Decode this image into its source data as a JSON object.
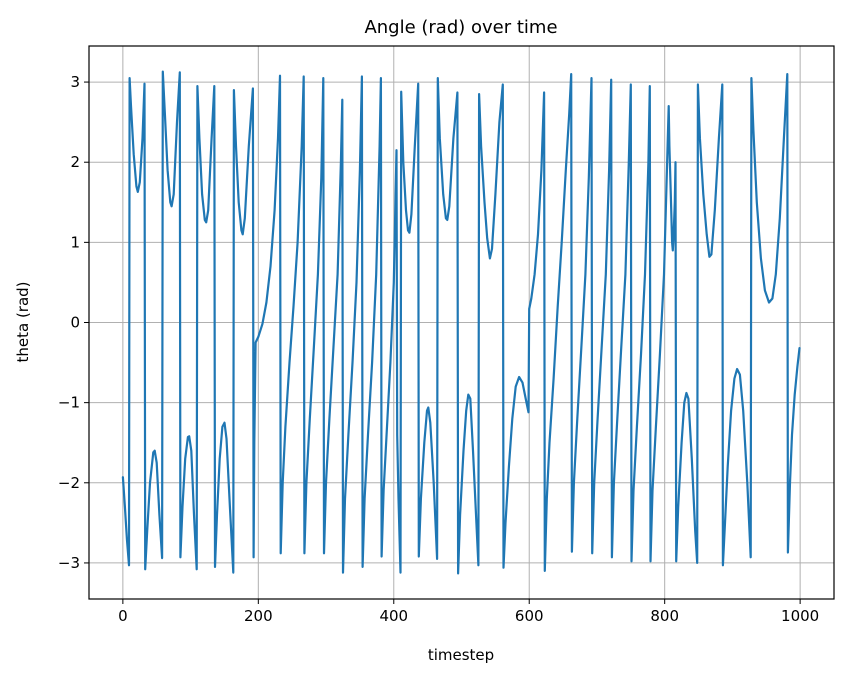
{
  "chart_data": {
    "type": "line",
    "title": "Angle (rad) over time",
    "xlabel": "timestep",
    "ylabel": "theta (rad)",
    "xlim": [
      -50,
      1050
    ],
    "ylim": [
      -3.45,
      3.45
    ],
    "xticks": [
      0,
      200,
      400,
      600,
      800,
      1000
    ],
    "xtick_labels": [
      "0",
      "200",
      "400",
      "600",
      "800",
      "1000"
    ],
    "yticks": [
      -3,
      -2,
      -1,
      0,
      1,
      2,
      3
    ],
    "ytick_labels": [
      "−3",
      "−2",
      "−1",
      "0",
      "1",
      "2",
      "3"
    ],
    "grid": true,
    "series": [
      {
        "color": "#1f77b4",
        "points": [
          [
            0,
            -1.93
          ],
          [
            3,
            -2.3
          ],
          [
            6,
            -2.7
          ],
          [
            9,
            -3.03
          ],
          [
            10,
            3.05
          ],
          [
            12,
            2.7
          ],
          [
            16,
            2.1
          ],
          [
            20,
            1.7
          ],
          [
            22,
            1.63
          ],
          [
            25,
            1.75
          ],
          [
            29,
            2.3
          ],
          [
            32,
            2.98
          ],
          [
            33,
            -3.08
          ],
          [
            36,
            -2.6
          ],
          [
            40,
            -2.0
          ],
          [
            45,
            -1.62
          ],
          [
            47,
            -1.6
          ],
          [
            50,
            -1.75
          ],
          [
            54,
            -2.4
          ],
          [
            58,
            -2.94
          ],
          [
            59,
            3.13
          ],
          [
            62,
            2.6
          ],
          [
            66,
            1.9
          ],
          [
            70,
            1.5
          ],
          [
            72,
            1.45
          ],
          [
            75,
            1.6
          ],
          [
            80,
            2.5
          ],
          [
            84,
            3.12
          ],
          [
            85,
            -2.93
          ],
          [
            88,
            -2.3
          ],
          [
            92,
            -1.7
          ],
          [
            96,
            -1.43
          ],
          [
            98,
            -1.42
          ],
          [
            101,
            -1.6
          ],
          [
            105,
            -2.4
          ],
          [
            109,
            -3.08
          ],
          [
            110,
            2.95
          ],
          [
            113,
            2.3
          ],
          [
            117,
            1.6
          ],
          [
            121,
            1.28
          ],
          [
            123,
            1.25
          ],
          [
            126,
            1.4
          ],
          [
            131,
            2.3
          ],
          [
            135,
            2.95
          ],
          [
            136,
            -3.05
          ],
          [
            139,
            -2.4
          ],
          [
            143,
            -1.7
          ],
          [
            147,
            -1.3
          ],
          [
            150,
            -1.25
          ],
          [
            153,
            -1.45
          ],
          [
            158,
            -2.3
          ],
          [
            163,
            -3.12
          ],
          [
            164,
            2.9
          ],
          [
            167,
            2.2
          ],
          [
            171,
            1.5
          ],
          [
            175,
            1.15
          ],
          [
            177,
            1.1
          ],
          [
            180,
            1.3
          ],
          [
            186,
            2.2
          ],
          [
            192,
            2.92
          ],
          [
            193,
            -2.93
          ],
          [
            194,
            -1.5
          ],
          [
            196,
            -0.25
          ],
          [
            200,
            -0.18
          ],
          [
            206,
            -0.02
          ],
          [
            212,
            0.25
          ],
          [
            218,
            0.7
          ],
          [
            224,
            1.4
          ],
          [
            229,
            2.3
          ],
          [
            232,
            3.08
          ],
          [
            233,
            -2.88
          ],
          [
            236,
            -2.0
          ],
          [
            240,
            -1.3
          ],
          [
            246,
            -0.5
          ],
          [
            252,
            0.2
          ],
          [
            258,
            1.0
          ],
          [
            264,
            2.2
          ],
          [
            267,
            3.07
          ],
          [
            268,
            -2.88
          ],
          [
            271,
            -2.0
          ],
          [
            276,
            -1.2
          ],
          [
            282,
            -0.3
          ],
          [
            288,
            0.6
          ],
          [
            293,
            1.8
          ],
          [
            296,
            3.05
          ],
          [
            297,
            -2.88
          ],
          [
            300,
            -2.0
          ],
          [
            305,
            -1.2
          ],
          [
            311,
            -0.3
          ],
          [
            317,
            0.6
          ],
          [
            322,
            2.0
          ],
          [
            324,
            2.78
          ],
          [
            325,
            -3.12
          ],
          [
            328,
            -2.2
          ],
          [
            333,
            -1.4
          ],
          [
            339,
            -0.5
          ],
          [
            345,
            0.5
          ],
          [
            350,
            1.9
          ],
          [
            353,
            3.07
          ],
          [
            354,
            -3.05
          ],
          [
            357,
            -2.2
          ],
          [
            362,
            -1.4
          ],
          [
            368,
            -0.5
          ],
          [
            374,
            0.6
          ],
          [
            379,
            2.2
          ],
          [
            381,
            3.05
          ],
          [
            382,
            -2.92
          ],
          [
            385,
            -2.1
          ],
          [
            390,
            -1.3
          ],
          [
            395,
            -0.5
          ],
          [
            400,
            0.5
          ],
          [
            404,
            2.15
          ],
          [
            405,
            -1.4
          ],
          [
            407,
            -2.2
          ],
          [
            410,
            -3.12
          ],
          [
            411,
            2.88
          ],
          [
            414,
            2.0
          ],
          [
            418,
            1.4
          ],
          [
            421,
            1.15
          ],
          [
            423,
            1.12
          ],
          [
            426,
            1.35
          ],
          [
            431,
            2.2
          ],
          [
            436,
            2.98
          ],
          [
            437,
            -2.92
          ],
          [
            440,
            -2.2
          ],
          [
            445,
            -1.5
          ],
          [
            449,
            -1.1
          ],
          [
            451,
            -1.06
          ],
          [
            454,
            -1.25
          ],
          [
            459,
            -2.0
          ],
          [
            464,
            -2.95
          ],
          [
            465,
            3.05
          ],
          [
            468,
            2.3
          ],
          [
            473,
            1.6
          ],
          [
            477,
            1.3
          ],
          [
            479,
            1.28
          ],
          [
            482,
            1.45
          ],
          [
            488,
            2.3
          ],
          [
            494,
            2.87
          ],
          [
            495,
            -3.13
          ],
          [
            498,
            -2.4
          ],
          [
            503,
            -1.6
          ],
          [
            507,
            -1.1
          ],
          [
            510,
            -0.9
          ],
          [
            513,
            -0.95
          ],
          [
            517,
            -1.6
          ],
          [
            522,
            -2.5
          ],
          [
            525,
            -3.03
          ],
          [
            526,
            2.85
          ],
          [
            529,
            2.2
          ],
          [
            534,
            1.5
          ],
          [
            538,
            1.05
          ],
          [
            542,
            0.8
          ],
          [
            545,
            0.92
          ],
          [
            550,
            1.6
          ],
          [
            556,
            2.5
          ],
          [
            561,
            2.97
          ],
          [
            562,
            -3.06
          ],
          [
            565,
            -2.5
          ],
          [
            570,
            -1.8
          ],
          [
            575,
            -1.2
          ],
          [
            580,
            -0.8
          ],
          [
            585,
            -0.68
          ],
          [
            590,
            -0.75
          ],
          [
            596,
            -1.0
          ],
          [
            599,
            -1.12
          ],
          [
            600,
            0.17
          ],
          [
            603,
            0.3
          ],
          [
            608,
            0.6
          ],
          [
            613,
            1.1
          ],
          [
            618,
            1.9
          ],
          [
            622,
            2.87
          ],
          [
            623,
            -3.1
          ],
          [
            626,
            -2.2
          ],
          [
            630,
            -1.5
          ],
          [
            636,
            -0.7
          ],
          [
            642,
            0.2
          ],
          [
            648,
            1.0
          ],
          [
            654,
            1.9
          ],
          [
            659,
            2.6
          ],
          [
            662,
            3.1
          ],
          [
            663,
            -2.86
          ],
          [
            666,
            -2.0
          ],
          [
            671,
            -1.2
          ],
          [
            677,
            -0.3
          ],
          [
            683,
            0.6
          ],
          [
            688,
            1.8
          ],
          [
            692,
            3.05
          ],
          [
            693,
            -2.88
          ],
          [
            696,
            -2.0
          ],
          [
            701,
            -1.2
          ],
          [
            707,
            -0.3
          ],
          [
            713,
            0.6
          ],
          [
            718,
            1.9
          ],
          [
            721,
            3.03
          ],
          [
            722,
            -2.93
          ],
          [
            725,
            -2.0
          ],
          [
            730,
            -1.2
          ],
          [
            736,
            -0.3
          ],
          [
            742,
            0.6
          ],
          [
            747,
            2.0
          ],
          [
            750,
            2.97
          ],
          [
            751,
            -2.98
          ],
          [
            754,
            -2.1
          ],
          [
            759,
            -1.3
          ],
          [
            765,
            -0.4
          ],
          [
            771,
            0.6
          ],
          [
            776,
            2.0
          ],
          [
            778,
            2.95
          ],
          [
            779,
            -2.98
          ],
          [
            782,
            -2.1
          ],
          [
            787,
            -1.3
          ],
          [
            793,
            -0.4
          ],
          [
            799,
            0.6
          ],
          [
            803,
            1.8
          ],
          [
            806,
            2.7
          ],
          [
            807,
            2.2
          ],
          [
            809,
            1.6
          ],
          [
            811,
            1.0
          ],
          [
            812,
            0.9
          ],
          [
            813,
            1.05
          ],
          [
            815,
            1.5
          ],
          [
            816,
            2.0
          ],
          [
            817,
            -2.98
          ],
          [
            820,
            -2.3
          ],
          [
            825,
            -1.5
          ],
          [
            829,
            -1.0
          ],
          [
            832,
            -0.88
          ],
          [
            835,
            -0.95
          ],
          [
            840,
            -1.7
          ],
          [
            845,
            -2.6
          ],
          [
            848,
            -3.0
          ],
          [
            849,
            2.97
          ],
          [
            852,
            2.3
          ],
          [
            857,
            1.6
          ],
          [
            862,
            1.1
          ],
          [
            866,
            0.82
          ],
          [
            869,
            0.85
          ],
          [
            874,
            1.4
          ],
          [
            880,
            2.3
          ],
          [
            885,
            2.97
          ],
          [
            886,
            -3.03
          ],
          [
            889,
            -2.5
          ],
          [
            893,
            -1.8
          ],
          [
            898,
            -1.1
          ],
          [
            903,
            -0.7
          ],
          [
            907,
            -0.58
          ],
          [
            911,
            -0.65
          ],
          [
            916,
            -1.1
          ],
          [
            922,
            -2.0
          ],
          [
            927,
            -2.93
          ],
          [
            928,
            3.05
          ],
          [
            931,
            2.4
          ],
          [
            936,
            1.5
          ],
          [
            942,
            0.8
          ],
          [
            948,
            0.4
          ],
          [
            954,
            0.25
          ],
          [
            959,
            0.3
          ],
          [
            964,
            0.6
          ],
          [
            970,
            1.3
          ],
          [
            976,
            2.3
          ],
          [
            981,
            3.1
          ],
          [
            982,
            -2.87
          ],
          [
            985,
            -2.0
          ],
          [
            988,
            -1.4
          ],
          [
            992,
            -0.9
          ],
          [
            996,
            -0.55
          ],
          [
            999,
            -0.32
          ]
        ]
      }
    ]
  }
}
